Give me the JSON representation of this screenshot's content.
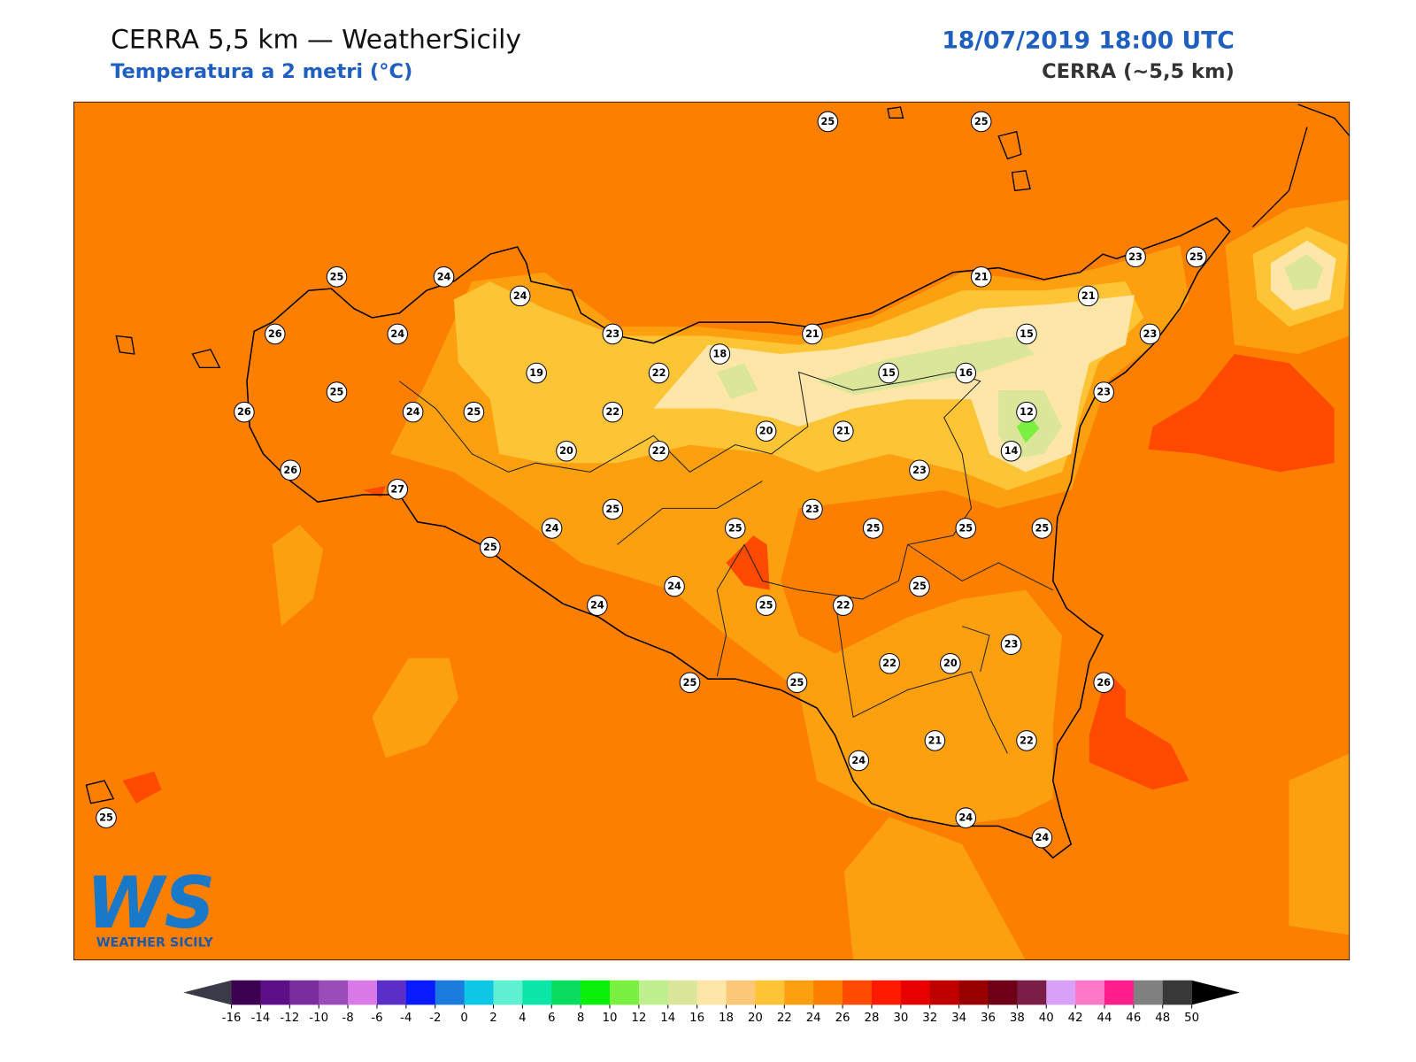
{
  "header": {
    "title": "CERRA 5,5 km — WeatherSicily",
    "subtitle": "Temperatura a 2 metri (°C)",
    "date": "18/07/2019 18:00 UTC",
    "model": "CERRA (~5,5 km)"
  },
  "logo": {
    "text": "WS",
    "name": "WEATHER SICILY"
  },
  "stations": [
    25,
    25,
    25,
    24,
    24,
    23,
    25,
    21,
    21,
    26,
    24,
    23,
    21,
    15,
    23,
    18,
    19,
    22,
    15,
    16,
    25,
    23,
    26,
    24,
    25,
    22,
    12,
    20,
    21,
    20,
    22,
    14,
    26,
    23,
    27,
    25,
    23,
    24,
    25,
    25,
    25,
    25,
    25,
    25,
    24,
    24,
    25,
    22,
    23,
    22,
    20,
    26,
    25,
    25,
    21,
    22,
    24,
    24,
    25,
    24
  ],
  "colorbar": {
    "ticks": [
      -16,
      -14,
      -12,
      -10,
      -8,
      -6,
      -4,
      -2,
      0,
      2,
      4,
      6,
      8,
      10,
      12,
      14,
      16,
      18,
      20,
      22,
      24,
      26,
      28,
      30,
      32,
      34,
      36,
      38,
      40,
      42,
      44,
      46,
      48,
      50
    ],
    "colors": [
      "#3d0050",
      "#5c0f86",
      "#7a2d9c",
      "#9a4db8",
      "#d97ae8",
      "#5a2fc8",
      "#0a1cff",
      "#1a7cdc",
      "#0ec6e6",
      "#5ef0d0",
      "#0ae6a8",
      "#0adc60",
      "#0af00a",
      "#7af040",
      "#c0ef90",
      "#dce69a",
      "#fde6a8",
      "#fcc878",
      "#fdc535",
      "#fda010",
      "#fd7f00",
      "#ff4a00",
      "#ff1a00",
      "#e60000",
      "#c00000",
      "#980000",
      "#6e0018",
      "#7a1e48",
      "#d8a0f8",
      "#ff78c8",
      "#ff1e8c",
      "#808080",
      "#383838"
    ],
    "under_color": "#3a3a48",
    "over_color": "#000000"
  }
}
